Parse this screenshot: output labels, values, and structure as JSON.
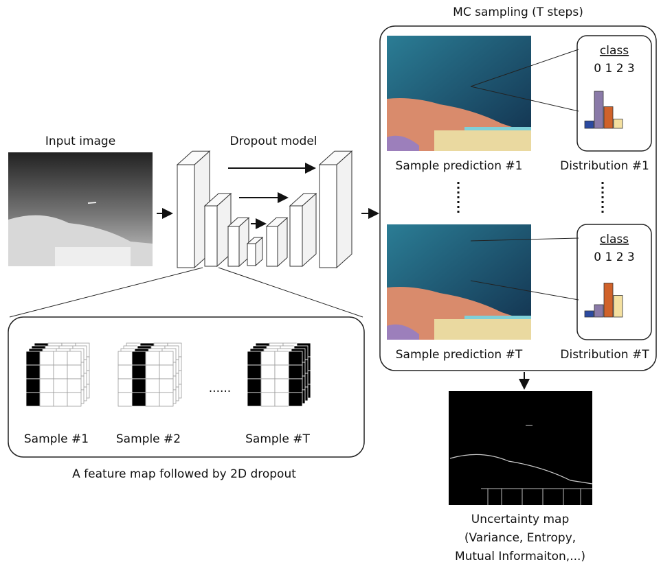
{
  "input": {
    "label": "Input image"
  },
  "model": {
    "label": "Dropout model"
  },
  "mc": {
    "title": "MC sampling (T steps)",
    "samples": [
      {
        "prediction_label": "Sample prediction #1",
        "distribution_label": "Distribution #1",
        "class_title": "class",
        "class_labels": "0 1 2 3",
        "bars": [
          0.12,
          0.6,
          0.35,
          0.15
        ]
      },
      {
        "prediction_label": "Sample prediction #T",
        "distribution_label": "Distribution #T",
        "class_title": "class",
        "class_labels": "0 1 2 3",
        "bars": [
          0.1,
          0.2,
          0.55,
          0.35
        ]
      }
    ]
  },
  "dropout": {
    "caption": "A feature map followed by 2D dropout",
    "dots": "......",
    "samples": [
      "Sample #1",
      "Sample #2",
      "Sample #T"
    ]
  },
  "uncertainty": {
    "lines": [
      "Uncertainty map",
      "(Variance, Entropy,",
      "Mutual Informaiton,...)"
    ]
  }
}
